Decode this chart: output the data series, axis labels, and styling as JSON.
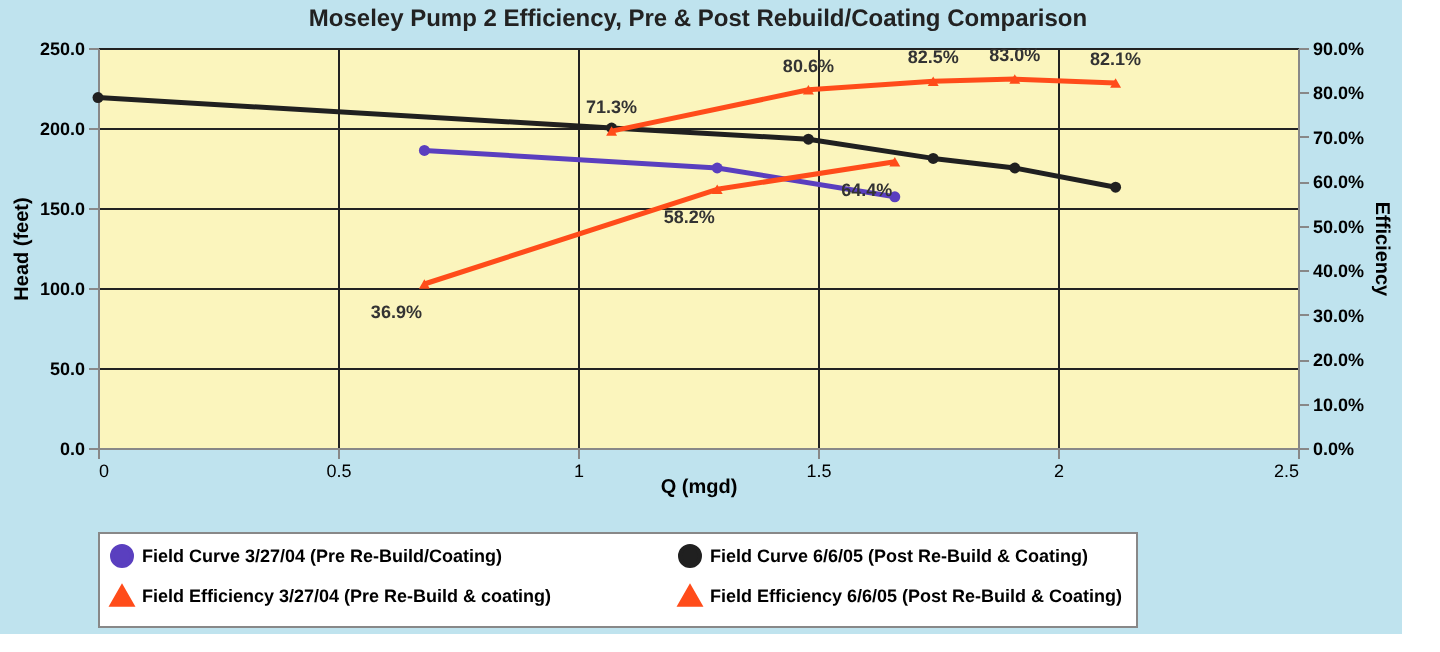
{
  "chart_data": {
    "type": "line",
    "title": "Moseley Pump 2 Efficiency, Pre & Post Rebuild/Coating Comparison",
    "xlabel": "Q (mgd)",
    "ylabel": "Head (feet)",
    "y2label": "Efficiency",
    "xlim": [
      0,
      2.5
    ],
    "xticks": [
      0,
      0.5,
      1,
      1.5,
      2,
      2.5
    ],
    "ylim": [
      0,
      250
    ],
    "yticks": [
      {
        "value": 0,
        "label": "0.0"
      },
      {
        "value": 50,
        "label": "50.0"
      },
      {
        "value": 100,
        "label": "100.0"
      },
      {
        "value": 150,
        "label": "150.0"
      },
      {
        "value": 200,
        "label": "200.0"
      },
      {
        "value": 250,
        "label": "250.0"
      }
    ],
    "y2lim": [
      0,
      90
    ],
    "y2ticks": [
      {
        "value": 0,
        "label": "0.0%"
      },
      {
        "value": 10,
        "label": "10.0%"
      },
      {
        "value": 20,
        "label": "20.0%"
      },
      {
        "value": 30,
        "label": "30.0%"
      },
      {
        "value": 40,
        "label": "40.0%"
      },
      {
        "value": 50,
        "label": "50.0%"
      },
      {
        "value": 60,
        "label": "60.0%"
      },
      {
        "value": 70,
        "label": "70.0%"
      },
      {
        "value": 80,
        "label": "80.0%"
      },
      {
        "value": 90,
        "label": "90.0%"
      }
    ],
    "grid": true,
    "legend": "bottom",
    "line_style": "solid",
    "series": [
      {
        "name": "Field Curve 3/27/04 (Pre Re-Build/Coating)",
        "color": "#5a3fbf",
        "marker": "circle",
        "x": [
          0.68,
          1.29,
          1.66
        ],
        "values": [
          186,
          175,
          157
        ]
      },
      {
        "name": "Field Curve 6/6/05 (Post Re-Build & Coating)",
        "color": "#202020",
        "marker": "circle",
        "x": [
          0,
          1.07,
          1.48,
          1.74,
          1.91,
          2.12
        ],
        "values": [
          219,
          200,
          193,
          181,
          175,
          163
        ]
      },
      {
        "name": "Field Efficiency 3/27/04 (Pre Re-Build & coating)",
        "color": "#ff4c1a",
        "marker": "triangle",
        "axis": "y2",
        "x": [
          0.68,
          1.29,
          1.66
        ],
        "values": [
          36.9,
          58.2,
          64.4
        ],
        "value_labels": [
          "36.9%",
          "58.2%",
          "64.4%"
        ]
      },
      {
        "name": "Field Efficiency 6/6/05 (Post Re-Build & Coating)",
        "color": "#ff4c1a",
        "marker": "triangle",
        "axis": "y2",
        "x": [
          1.07,
          1.48,
          1.74,
          1.91,
          2.12
        ],
        "values": [
          71.3,
          80.6,
          82.5,
          83.0,
          82.1
        ],
        "value_labels": [
          "71.3%",
          "80.6%",
          "82.5%",
          "83.0%",
          "82.1%"
        ]
      }
    ]
  }
}
